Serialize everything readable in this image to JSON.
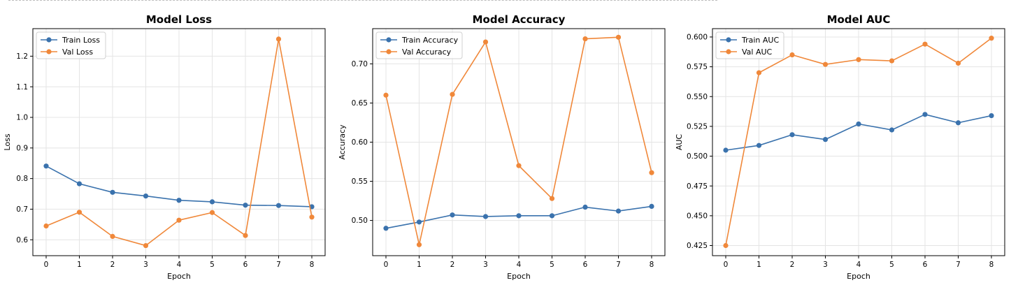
{
  "colors": {
    "train": "#3a72ad",
    "val": "#f0883a",
    "grid": "#e4e4e4",
    "axis": "#000000"
  },
  "chart_data": [
    {
      "type": "line",
      "title": "Model Loss",
      "xlabel": "Epoch",
      "ylabel": "Loss",
      "x": [
        0,
        1,
        2,
        3,
        4,
        5,
        6,
        7,
        8
      ],
      "xlim": [
        -0.4,
        8.4
      ],
      "ylim": [
        0.548,
        1.29
      ],
      "yticks": [
        0.6,
        0.7,
        0.8,
        0.9,
        1.0,
        1.1,
        1.2
      ],
      "ytick_labels": [
        "0.6",
        "0.7",
        "0.8",
        "0.9",
        "1.0",
        "1.1",
        "1.2"
      ],
      "grid": true,
      "legend_position": "top-left",
      "series": [
        {
          "name": "Train Loss",
          "color": "#3a72ad",
          "values": [
            0.841,
            0.783,
            0.755,
            0.743,
            0.729,
            0.724,
            0.713,
            0.712,
            0.708
          ]
        },
        {
          "name": "Val Loss",
          "color": "#f0883a",
          "values": [
            0.645,
            0.69,
            0.611,
            0.581,
            0.664,
            0.689,
            0.614,
            1.256,
            0.674
          ]
        }
      ]
    },
    {
      "type": "line",
      "title": "Model Accuracy",
      "xlabel": "Epoch",
      "ylabel": "Accuracy",
      "x": [
        0,
        1,
        2,
        3,
        4,
        5,
        6,
        7,
        8
      ],
      "xlim": [
        -0.4,
        8.4
      ],
      "ylim": [
        0.455,
        0.745
      ],
      "yticks": [
        0.5,
        0.55,
        0.6,
        0.65,
        0.7
      ],
      "ytick_labels": [
        "0.50",
        "0.55",
        "0.60",
        "0.65",
        "0.70"
      ],
      "grid": true,
      "legend_position": "top-left",
      "series": [
        {
          "name": "Train Accuracy",
          "color": "#3a72ad",
          "values": [
            0.49,
            0.498,
            0.507,
            0.505,
            0.506,
            0.506,
            0.517,
            0.512,
            0.518
          ]
        },
        {
          "name": "Val Accuracy",
          "color": "#f0883a",
          "values": [
            0.66,
            0.469,
            0.661,
            0.728,
            0.57,
            0.528,
            0.732,
            0.734,
            0.561
          ]
        }
      ]
    },
    {
      "type": "line",
      "title": "Model AUC",
      "xlabel": "Epoch",
      "ylabel": "AUC",
      "x": [
        0,
        1,
        2,
        3,
        4,
        5,
        6,
        7,
        8
      ],
      "xlim": [
        -0.4,
        8.4
      ],
      "ylim": [
        0.4165,
        0.607
      ],
      "yticks": [
        0.425,
        0.45,
        0.475,
        0.5,
        0.525,
        0.55,
        0.575,
        0.6
      ],
      "ytick_labels": [
        "0.425",
        "0.450",
        "0.475",
        "0.500",
        "0.525",
        "0.550",
        "0.575",
        "0.600"
      ],
      "grid": true,
      "legend_position": "top-left",
      "series": [
        {
          "name": "Train AUC",
          "color": "#3a72ad",
          "values": [
            0.505,
            0.509,
            0.518,
            0.514,
            0.527,
            0.522,
            0.535,
            0.528,
            0.534
          ]
        },
        {
          "name": "Val AUC",
          "color": "#f0883a",
          "values": [
            0.425,
            0.57,
            0.585,
            0.577,
            0.581,
            0.58,
            0.594,
            0.578,
            0.599
          ]
        }
      ]
    }
  ]
}
